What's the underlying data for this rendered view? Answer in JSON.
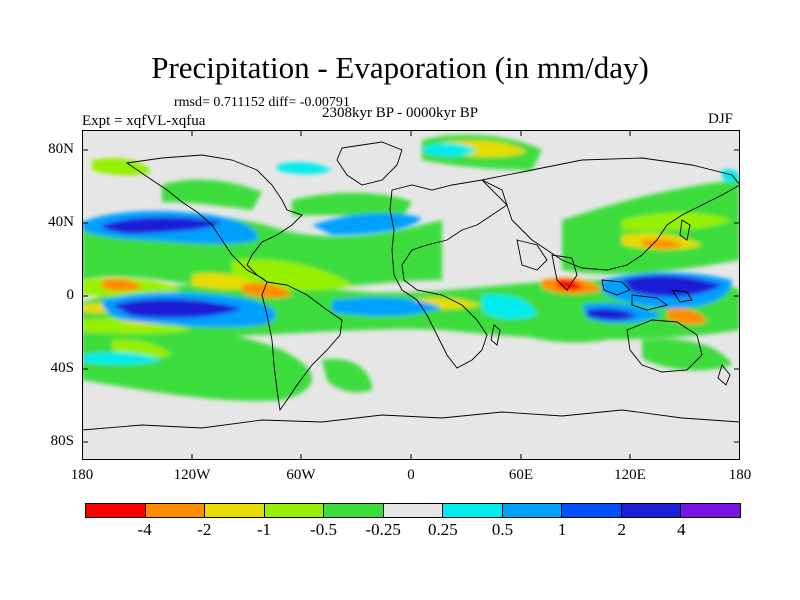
{
  "title": "Precipitation - Evaporation (in mm/day)",
  "stats": "rmsd= 0.711152 diff= -0.00791",
  "experiment": "Expt = xqfVL-xqfua",
  "period": "2308kyr BP - 0000kyr BP",
  "season": "DJF",
  "lat_labels": [
    "80N",
    "40N",
    "0",
    "40S",
    "80S"
  ],
  "lon_labels": [
    "180",
    "120W",
    "60W",
    "0",
    "60E",
    "120E",
    "180"
  ],
  "colorbar": {
    "colors": [
      "#ff0000",
      "#ff8c00",
      "#e6dc00",
      "#96f000",
      "#3cdc3c",
      "#e6e6e6",
      "#00ebeb",
      "#00a0ff",
      "#0050ff",
      "#1e1ed7",
      "#7814e6"
    ],
    "labels": [
      "-4",
      "-2",
      "-1",
      "-0.5",
      "-0.25",
      "0.25",
      "0.5",
      "1",
      "2",
      "4"
    ]
  },
  "map": {
    "background": "#e6e6e6",
    "land_outline_color": "#000000"
  }
}
